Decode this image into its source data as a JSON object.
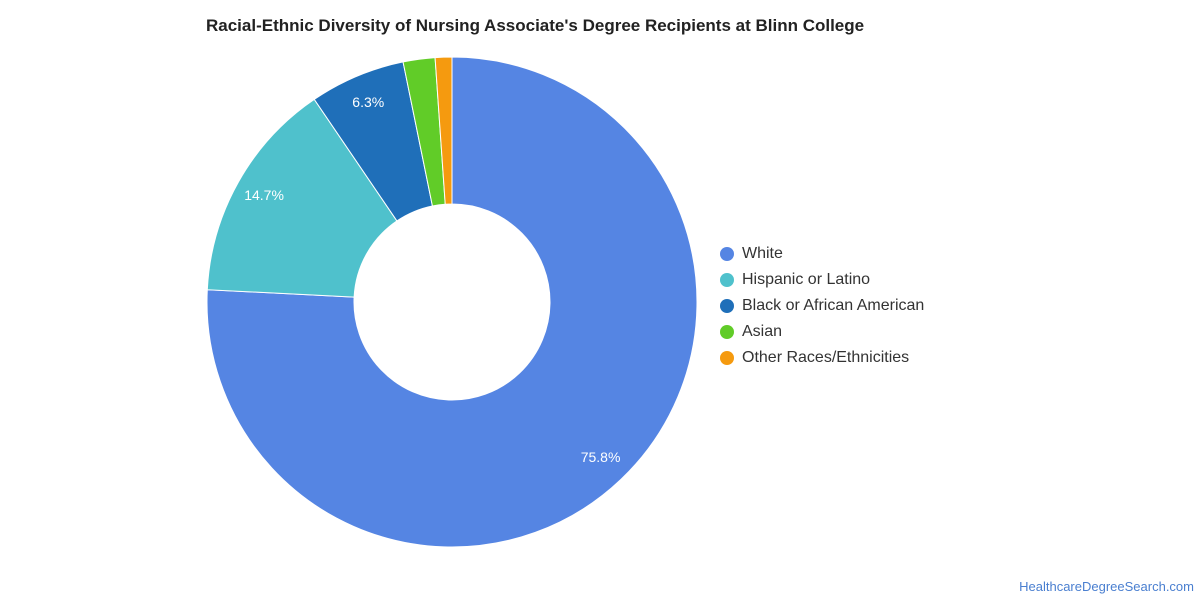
{
  "chart_data": {
    "type": "pie",
    "title": "Racial-Ethnic Diversity of Nursing Associate's Degree Recipients at Blinn College",
    "donut": true,
    "categories": [
      "White",
      "Hispanic or Latino",
      "Black or African American",
      "Asian",
      "Other Races/Ethnicities"
    ],
    "values": [
      75.8,
      14.7,
      6.3,
      2.1,
      1.1
    ],
    "data_labels": [
      "75.8%",
      "14.7%",
      "6.3%",
      "",
      ""
    ],
    "colors": [
      "#5585e3",
      "#4fc1cc",
      "#1f6fb9",
      "#61cc28",
      "#f59a0f"
    ],
    "legend_position": "right",
    "xlabel": "",
    "ylabel": ""
  },
  "legend": {
    "items": [
      {
        "label": "White",
        "color": "#5585e3"
      },
      {
        "label": "Hispanic or Latino",
        "color": "#4fc1cc"
      },
      {
        "label": "Black or African American",
        "color": "#1f6fb9"
      },
      {
        "label": "Asian",
        "color": "#61cc28"
      },
      {
        "label": "Other Races/Ethnicities",
        "color": "#f59a0f"
      }
    ]
  },
  "footer": {
    "source": "HealthcareDegreeSearch.com"
  }
}
